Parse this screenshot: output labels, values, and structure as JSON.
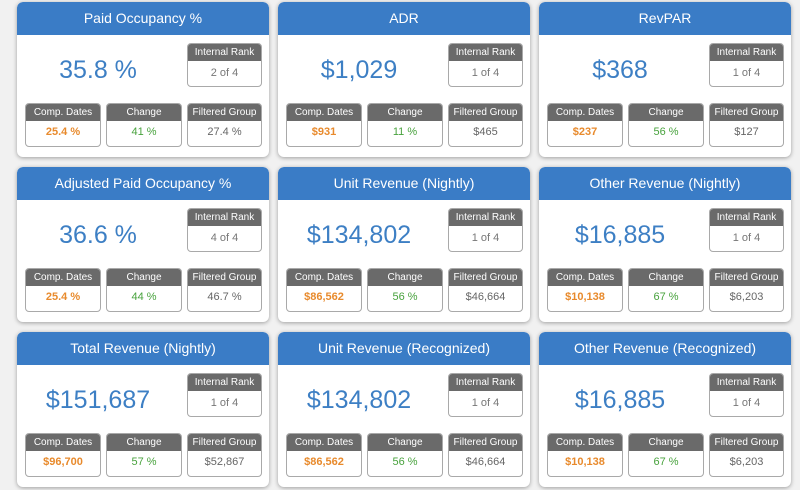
{
  "labels": {
    "internal_rank": "Internal Rank",
    "comp_dates": "Comp. Dates",
    "change": "Change",
    "filtered_group": "Filtered Group"
  },
  "colors": {
    "header_blue": "#3a7cc6",
    "value_blue": "#3d7fc4",
    "label_gray": "#6a6a6a",
    "comp_orange": "#e88a2c",
    "change_green": "#48a23d"
  },
  "cards": [
    {
      "title": "Paid Occupancy %",
      "value": "35.8 %",
      "rank": "2 of 4",
      "comp": "25.4 %",
      "change": "41 %",
      "filtered": "27.4 %"
    },
    {
      "title": "ADR",
      "value": "$1,029",
      "rank": "1 of 4",
      "comp": "$931",
      "change": "11 %",
      "filtered": "$465"
    },
    {
      "title": "RevPAR",
      "value": "$368",
      "rank": "1 of 4",
      "comp": "$237",
      "change": "56 %",
      "filtered": "$127"
    },
    {
      "title": "Adjusted Paid Occupancy %",
      "value": "36.6 %",
      "rank": "4 of 4",
      "comp": "25.4 %",
      "change": "44 %",
      "filtered": "46.7 %"
    },
    {
      "title": "Unit Revenue (Nightly)",
      "value": "$134,802",
      "rank": "1 of 4",
      "comp": "$86,562",
      "change": "56 %",
      "filtered": "$46,664"
    },
    {
      "title": "Other Revenue (Nightly)",
      "value": "$16,885",
      "rank": "1 of 4",
      "comp": "$10,138",
      "change": "67 %",
      "filtered": "$6,203"
    },
    {
      "title": "Total Revenue (Nightly)",
      "value": "$151,687",
      "rank": "1 of 4",
      "comp": "$96,700",
      "change": "57 %",
      "filtered": "$52,867"
    },
    {
      "title": "Unit Revenue (Recognized)",
      "value": "$134,802",
      "rank": "1 of 4",
      "comp": "$86,562",
      "change": "56 %",
      "filtered": "$46,664"
    },
    {
      "title": "Other Revenue (Recognized)",
      "value": "$16,885",
      "rank": "1 of 4",
      "comp": "$10,138",
      "change": "67 %",
      "filtered": "$6,203"
    }
  ]
}
